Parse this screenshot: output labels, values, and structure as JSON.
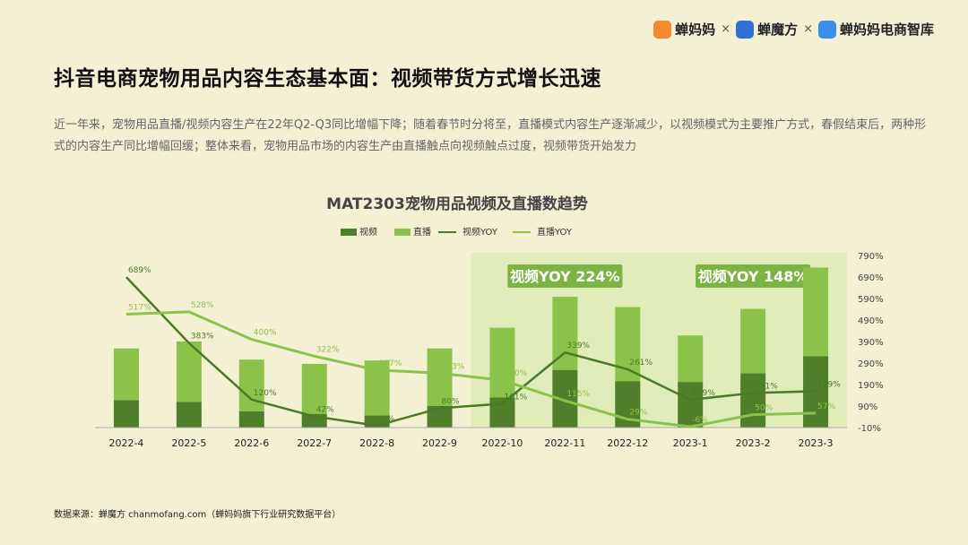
{
  "brand": {
    "logos": [
      "蝉妈妈",
      "蝉魔方",
      "蝉妈妈电商智库"
    ],
    "separator": "×"
  },
  "page": {
    "title": "抖音电商宠物用品内容生态基本面：视频带货方式增长迅速",
    "description": "近一年来，宠物用品直播/视频内容生产在22年Q2-Q3同比增幅下降；随着春节时分将至，直播模式内容生产逐渐减少，以视频模式为主要推广方式，春假结束后，两种形式的内容生产同比增幅回缓；整体来看，宠物用品市场的内容生产由直播触点向视频触点过度，视频带货开始发力",
    "source": "数据来源：蝉魔方 chanmofang.com（蝉妈妈旗下行业研究数据平台）"
  },
  "chart_data": {
    "type": "bar",
    "title": "MAT2303宠物用品视频及直播数趋势",
    "categories": [
      "2022-4",
      "2022-5",
      "2022-6",
      "2022-7",
      "2022-8",
      "2022-9",
      "2022-10",
      "2022-11",
      "2022-12",
      "2023-1",
      "2023-2",
      "2023-3"
    ],
    "legend": [
      "视频",
      "直播",
      "视频YOY",
      "直播YOY"
    ],
    "legend_position": "top",
    "stacked": true,
    "bar_series": [
      {
        "name": "视频",
        "color": "#4f7f2a",
        "values": [
          32,
          30,
          19,
          16,
          14,
          25,
          35,
          67,
          54,
          53,
          63,
          83
        ]
      },
      {
        "name": "直播",
        "color": "#8bc34a",
        "values": [
          60,
          70,
          60,
          58,
          64,
          67,
          81,
          85,
          86,
          54,
          75,
          103
        ]
      }
    ],
    "line_series": [
      {
        "name": "视频YOY",
        "color": "#4a7a28",
        "values": [
          689,
          383,
          120,
          42,
          -1,
          80,
          101,
          339,
          261,
          119,
          151,
          159
        ],
        "labels": [
          "689%",
          "383%",
          "120%",
          "42%",
          "-1%",
          "80%",
          "101%",
          "339%",
          "261%",
          "119%",
          "151%",
          "159%"
        ]
      },
      {
        "name": "直播YOY",
        "color": "#8bc34a",
        "values": [
          517,
          528,
          400,
          322,
          257,
          243,
          210,
          115,
          29,
          -6,
          50,
          57
        ],
        "labels": [
          "517%",
          "528%",
          "400%",
          "322%",
          "257%",
          "243%",
          "210%",
          "115%",
          "29%",
          "-6%",
          "50%",
          "57%"
        ]
      }
    ],
    "y_right_ticks": [
      "790%",
      "690%",
      "590%",
      "490%",
      "390%",
      "290%",
      "190%",
      "90%",
      "-10%"
    ],
    "y_right_range": [
      -10,
      790
    ],
    "y_left_range": [
      0,
      200
    ],
    "highlights": [
      {
        "from": "2022-10",
        "to": "2022-12",
        "label": "视频YOY 224%"
      },
      {
        "from": "2023-1",
        "to": "2023-3",
        "label": "视频YOY 148%"
      }
    ]
  }
}
